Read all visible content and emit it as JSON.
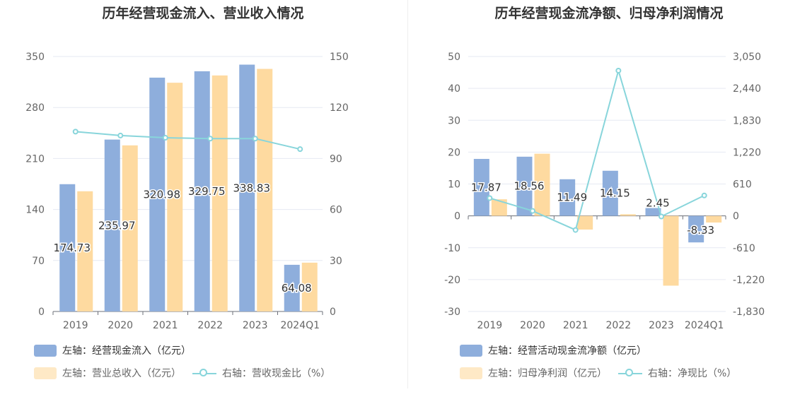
{
  "colors": {
    "bar_primary": "#8eaedc",
    "bar_secondary": "#fedaa0",
    "line": "#88d5db",
    "axis_text": "#666666",
    "label_text": "#333333",
    "grid": "#e6e9f2"
  },
  "chart_data": [
    {
      "type": "bar",
      "title": "历年经营现金流入、营业收入情况",
      "categories": [
        "2019",
        "2020",
        "2021",
        "2022",
        "2023",
        "2024Q1"
      ],
      "yleft_ticks": [
        "350",
        "280",
        "210",
        "140",
        "70",
        "0"
      ],
      "yright_ticks": [
        "150",
        "120",
        "90",
        "60",
        "30",
        "0"
      ],
      "yleft_range": [
        0,
        350
      ],
      "yright_range": [
        0,
        150
      ],
      "series": [
        {
          "name": "左轴：经营现金流入（亿元）",
          "axis": "left",
          "kind": "bar",
          "values": [
            174.73,
            235.97,
            320.98,
            329.75,
            338.83,
            64.08
          ],
          "labels": [
            "174.73",
            "235.97",
            "320.98",
            "329.75",
            "338.83",
            "64.08"
          ]
        },
        {
          "name": "左轴：营业总收入（亿元）",
          "axis": "left",
          "kind": "bar",
          "values": [
            165,
            228,
            314,
            324,
            333,
            67
          ]
        },
        {
          "name": "右轴：营收现金比（%）",
          "axis": "right",
          "kind": "line",
          "values": [
            105.8,
            103.5,
            102.2,
            101.7,
            101.7,
            95.5
          ]
        }
      ],
      "legend": [
        {
          "label": "左轴：经营现金流入（亿元）",
          "kind": "bar",
          "series": 0
        },
        {
          "label": "左轴：营业总收入（亿元）",
          "kind": "bar",
          "series": 1
        },
        {
          "label": "右轴：营收现金比（%）",
          "kind": "line",
          "series": 2
        }
      ]
    },
    {
      "type": "bar",
      "title": "历年经营现金流净额、归母净利润情况",
      "categories": [
        "2019",
        "2020",
        "2021",
        "2022",
        "2023",
        "2024Q1"
      ],
      "yleft_ticks": [
        "50",
        "40",
        "30",
        "20",
        "10",
        "0",
        "-10",
        "-20",
        "-30"
      ],
      "yright_ticks": [
        "3,050",
        "2,440",
        "1,830",
        "1,220",
        "610",
        "0",
        "-610",
        "-1,220",
        "-1,830"
      ],
      "yleft_range": [
        -30,
        50
      ],
      "yright_range": [
        -1830,
        3050
      ],
      "series": [
        {
          "name": "左轴：经营活动现金流净额（亿元）",
          "axis": "left",
          "kind": "bar",
          "values": [
            17.87,
            18.56,
            11.49,
            14.15,
            2.45,
            -8.33
          ],
          "labels": [
            "17.87",
            "18.56",
            "11.49",
            "14.15",
            "2.45",
            "-8.33"
          ]
        },
        {
          "name": "左轴：归母净利润（亿元）",
          "axis": "left",
          "kind": "bar",
          "values": [
            5.2,
            19.5,
            -4.3,
            0.5,
            -21.9,
            -2.1
          ]
        },
        {
          "name": "右轴：净现比（%）",
          "axis": "right",
          "kind": "line",
          "values": [
            340,
            95,
            -270,
            2780,
            -12,
            390
          ]
        }
      ],
      "legend": [
        {
          "label": "左轴：经营活动现金流净额（亿元）",
          "kind": "bar",
          "series": 0
        },
        {
          "label": "左轴：归母净利润（亿元）",
          "kind": "bar",
          "series": 1
        },
        {
          "label": "右轴：净现比（%）",
          "kind": "line",
          "series": 2
        }
      ]
    }
  ]
}
